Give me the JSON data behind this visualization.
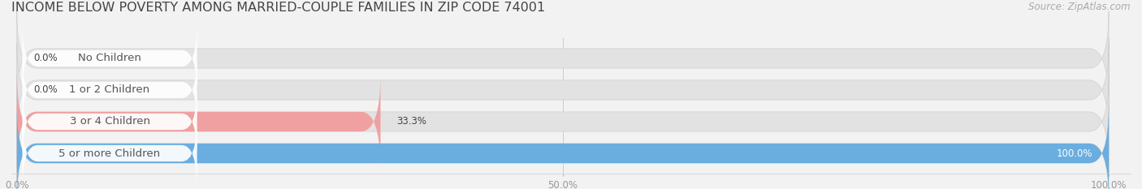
{
  "title": "INCOME BELOW POVERTY AMONG MARRIED-COUPLE FAMILIES IN ZIP CODE 74001",
  "source": "Source: ZipAtlas.com",
  "categories": [
    "No Children",
    "1 or 2 Children",
    "3 or 4 Children",
    "5 or more Children"
  ],
  "values": [
    0.0,
    0.0,
    33.3,
    100.0
  ],
  "bar_colors": [
    "#f2a0aa",
    "#f5c88a",
    "#f0a0a0",
    "#6aaee0"
  ],
  "xlim": [
    0,
    100
  ],
  "xticks": [
    0.0,
    50.0,
    100.0
  ],
  "xticklabels": [
    "0.0%",
    "50.0%",
    "100.0%"
  ],
  "background_color": "#f2f2f2",
  "bar_bg_color": "#e2e2e2",
  "title_fontsize": 11.5,
  "source_fontsize": 8.5,
  "label_fontsize": 9.5,
  "value_fontsize": 8.5,
  "bar_height": 0.62,
  "figsize": [
    14.06,
    2.33
  ],
  "dpi": 100
}
